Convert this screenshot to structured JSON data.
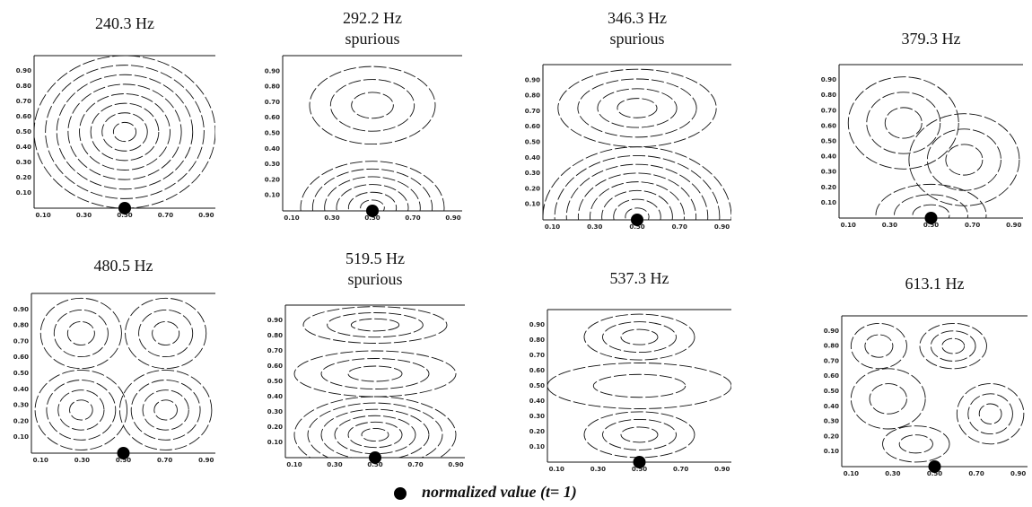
{
  "panels": [
    {
      "title": "240.3 Hz",
      "xticks": [
        "0.10",
        "0.30",
        "0.50",
        "0.70",
        "0.90"
      ],
      "yticks": [
        "0.10",
        "0.20",
        "0.30",
        "0.40",
        "0.50",
        "0.60",
        "0.70",
        "0.80",
        "0.90"
      ]
    },
    {
      "title": "292.2 Hz",
      "note": "spurious",
      "xticks": [
        "0.10",
        "0.30",
        "0.50",
        "0.70",
        "0.90"
      ],
      "yticks": [
        "0.10",
        "0.20",
        "0.30",
        "0.40",
        "0.50",
        "0.60",
        "0.70",
        "0.80",
        "0.90"
      ]
    },
    {
      "title": "346.3 Hz",
      "note": "spurious",
      "xticks": [
        "0.10",
        "0.30",
        "0.50",
        "0.70",
        "0.90"
      ],
      "yticks": [
        "0.10",
        "0.20",
        "0.30",
        "0.40",
        "0.50",
        "0.60",
        "0.70",
        "0.80",
        "0.90"
      ]
    },
    {
      "title": "379.3 Hz",
      "xticks": [
        "0.10",
        "0.30",
        "0.50",
        "0.70",
        "0.90"
      ],
      "yticks": [
        "0.10",
        "0.20",
        "0.30",
        "0.40",
        "0.50",
        "0.60",
        "0.70",
        "0.80",
        "0.90"
      ]
    },
    {
      "title": "480.5 Hz",
      "xticks": [
        "0.10",
        "0.30",
        "0.50",
        "0.70",
        "0.90"
      ],
      "yticks": [
        "0.10",
        "0.20",
        "0.30",
        "0.40",
        "0.50",
        "0.60",
        "0.70",
        "0.80",
        "0.90"
      ]
    },
    {
      "title": "519.5 Hz",
      "note": "spurious",
      "xticks": [
        "0.10",
        "0.30",
        "0.50",
        "0.70",
        "0.90"
      ],
      "yticks": [
        "0.10",
        "0.20",
        "0.30",
        "0.40",
        "0.50",
        "0.60",
        "0.70",
        "0.80",
        "0.90"
      ]
    },
    {
      "title": "537.3 Hz",
      "xticks": [
        "0.10",
        "0.30",
        "0.50",
        "0.70",
        "0.90"
      ],
      "yticks": [
        "0.10",
        "0.20",
        "0.30",
        "0.40",
        "0.50",
        "0.60",
        "0.70",
        "0.80",
        "0.90"
      ]
    },
    {
      "title": "613.1 Hz",
      "xticks": [
        "0.10",
        "0.30",
        "0.50",
        "0.70",
        "0.90"
      ],
      "yticks": [
        "0.10",
        "0.20",
        "0.30",
        "0.40",
        "0.50",
        "0.60",
        "0.70",
        "0.80",
        "0.90"
      ]
    }
  ],
  "legend": {
    "label": "normalized value (t= 1)"
  }
}
